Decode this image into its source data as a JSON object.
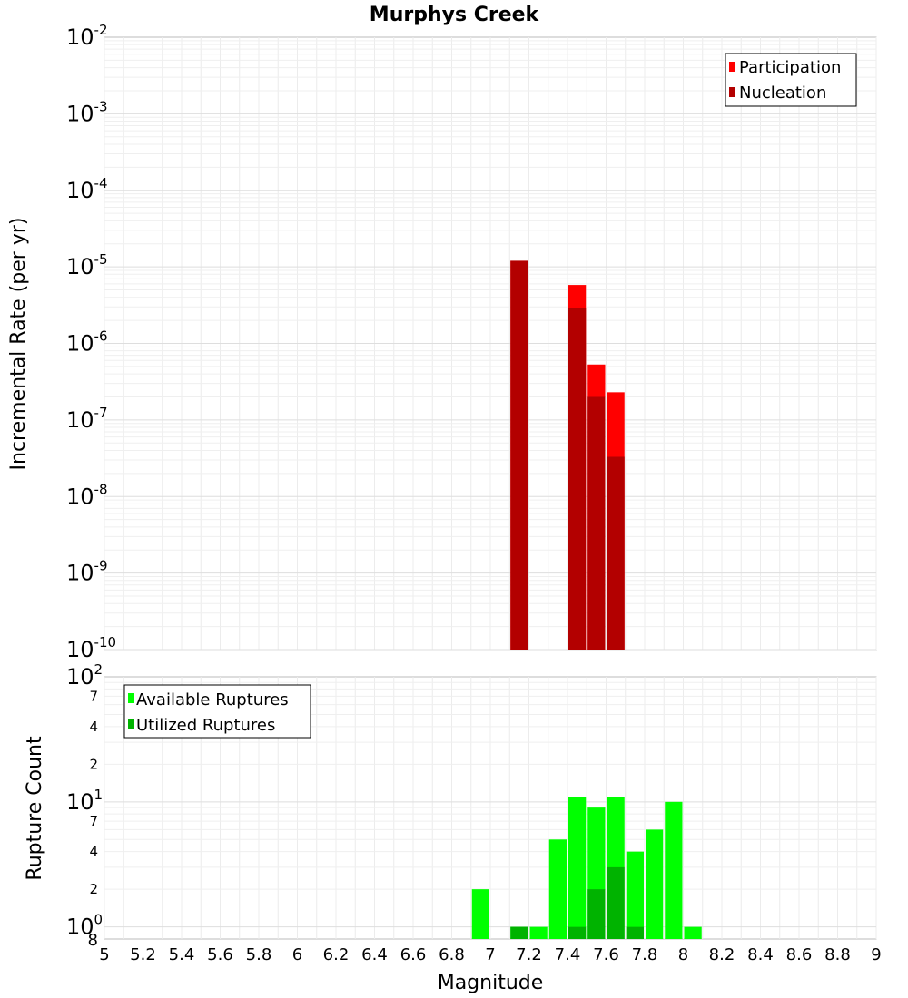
{
  "chart_data": [
    {
      "type": "bar",
      "title": "Murphys Creek",
      "ylabel": "Incremental Rate (per yr)",
      "yscale": "log",
      "ylim": [
        1e-10,
        0.01
      ],
      "xlim": [
        5,
        9
      ],
      "bar_width": 0.1,
      "y_tick_labels": [
        "10-10",
        "10-9",
        "10-8",
        "10-7",
        "10-6",
        "10-5",
        "10-4",
        "10-3",
        "10-2"
      ],
      "legend_position": "top-right",
      "series": [
        {
          "name": "Participation",
          "color": "#ff0000",
          "x": [
            7.15,
            7.45,
            7.55,
            7.65
          ],
          "values": [
            1.2e-05,
            5.8e-06,
            5.3e-07,
            2.3e-07
          ]
        },
        {
          "name": "Nucleation",
          "color": "#b30000",
          "x": [
            7.15,
            7.45,
            7.55,
            7.65
          ],
          "values": [
            1.2e-05,
            2.9e-06,
            2e-07,
            3.3e-08
          ]
        }
      ]
    },
    {
      "type": "bar",
      "ylabel": "Rupture Count",
      "xlabel": "Magnitude",
      "yscale": "log",
      "ylim": [
        0.8,
        100
      ],
      "xlim": [
        5,
        9
      ],
      "bar_width": 0.1,
      "y_major_ticks": [
        1,
        10,
        100
      ],
      "y_minor_ticks": [
        2,
        4,
        7,
        20,
        40,
        70
      ],
      "bottom_edge_label": "8",
      "x_ticks": [
        "5",
        "5.2",
        "5.4",
        "5.6",
        "5.8",
        "6",
        "6.2",
        "6.4",
        "6.6",
        "6.8",
        "7",
        "7.2",
        "7.4",
        "7.6",
        "7.8",
        "8",
        "8.2",
        "8.4",
        "8.6",
        "8.8",
        "9"
      ],
      "legend_position": "top-left",
      "series": [
        {
          "name": "Available Ruptures",
          "color": "#00ff00",
          "x": [
            6.95,
            7.15,
            7.25,
            7.35,
            7.45,
            7.55,
            7.65,
            7.75,
            7.85,
            7.95,
            8.05
          ],
          "values": [
            2,
            1,
            1,
            5,
            11,
            9,
            11,
            4,
            6,
            10,
            1
          ]
        },
        {
          "name": "Utilized Ruptures",
          "color": "#00b300",
          "x": [
            7.15,
            7.45,
            7.55,
            7.65,
            7.75
          ],
          "values": [
            1,
            1,
            2,
            3,
            1
          ]
        }
      ]
    }
  ]
}
